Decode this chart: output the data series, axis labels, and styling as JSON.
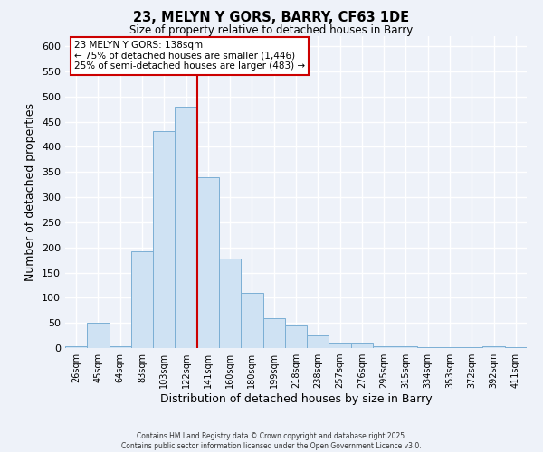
{
  "title": "23, MELYN Y GORS, BARRY, CF63 1DE",
  "subtitle": "Size of property relative to detached houses in Barry",
  "xlabel": "Distribution of detached houses by size in Barry",
  "ylabel": "Number of detached properties",
  "bar_color": "#cfe2f3",
  "bar_edge_color": "#7bafd4",
  "bin_labels": [
    "26sqm",
    "45sqm",
    "64sqm",
    "83sqm",
    "103sqm",
    "122sqm",
    "141sqm",
    "160sqm",
    "180sqm",
    "199sqm",
    "218sqm",
    "238sqm",
    "257sqm",
    "276sqm",
    "295sqm",
    "315sqm",
    "334sqm",
    "353sqm",
    "372sqm",
    "392sqm",
    "411sqm"
  ],
  "bar_heights": [
    3,
    50,
    3,
    192,
    432,
    480,
    340,
    178,
    110,
    60,
    45,
    25,
    10,
    10,
    3,
    3,
    1,
    1,
    1,
    3,
    1
  ],
  "vline_index": 6,
  "vline_color": "#cc0000",
  "annotation_text": "23 MELYN Y GORS: 138sqm\n← 75% of detached houses are smaller (1,446)\n25% of semi-detached houses are larger (483) →",
  "annotation_box_color": "#ffffff",
  "annotation_box_edge": "#cc0000",
  "ylim": [
    0,
    620
  ],
  "yticks": [
    0,
    50,
    100,
    150,
    200,
    250,
    300,
    350,
    400,
    450,
    500,
    550,
    600
  ],
  "footnote": "Contains HM Land Registry data © Crown copyright and database right 2025.\nContains public sector information licensed under the Open Government Licence v3.0.",
  "background_color": "#eef2f9",
  "grid_color": "#ffffff"
}
